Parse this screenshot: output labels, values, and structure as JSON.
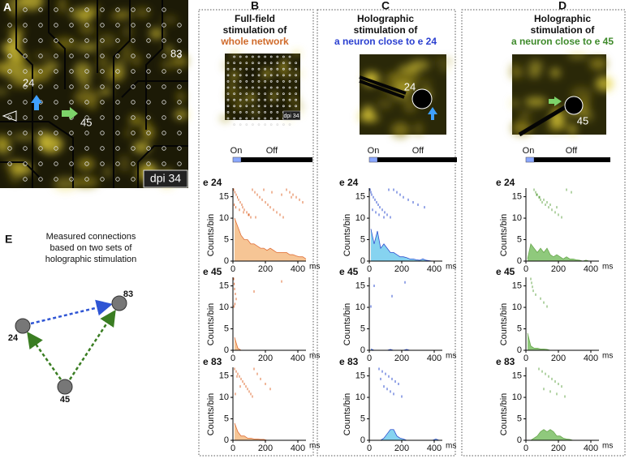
{
  "figure": {
    "A": {
      "letter": "A",
      "labels": [
        "24",
        "83",
        "45"
      ],
      "scale": "dpi 34"
    },
    "B": {
      "letter": "B",
      "title": [
        "Full-field",
        "stimulation of"
      ],
      "target": "whole network",
      "thumb_scale": "dpi 34",
      "on": "On",
      "off": "Off"
    },
    "C": {
      "letter": "C",
      "title": [
        "Holographic",
        "stimulation of"
      ],
      "target": "a neuron close to e 24",
      "image_label": "24",
      "on": "On",
      "off": "Off"
    },
    "D": {
      "letter": "D",
      "title": [
        "Holographic",
        "stimulation of"
      ],
      "target": "a neuron close to e 45",
      "image_label": "45",
      "on": "On",
      "off": "Off"
    },
    "E": {
      "letter": "E",
      "caption": [
        "Measured connections",
        "based on two sets of",
        "holographic stimulation"
      ],
      "nodes": [
        "24",
        "83",
        "45"
      ]
    }
  },
  "chart_data": [
    {
      "type": "area",
      "title": "e 24",
      "ylabel": "Counts/bin",
      "xunit": "ms",
      "color": "#e0703a",
      "fill": "#f6c595",
      "x": [
        10,
        30,
        50,
        70,
        90,
        110,
        130,
        150,
        170,
        190,
        210,
        230,
        250,
        270,
        290,
        310,
        330,
        350,
        370,
        390,
        410,
        430,
        450
      ],
      "values": [
        10,
        8,
        6,
        5,
        5,
        4,
        4,
        3.5,
        3,
        3,
        2.5,
        3,
        2.5,
        2,
        2,
        2,
        2,
        1.5,
        1.5,
        1.2,
        1,
        1,
        0.5
      ],
      "raster_x": [
        5,
        12,
        20,
        28,
        35,
        45,
        55,
        60,
        70,
        85,
        95,
        110,
        120,
        135,
        150,
        165,
        180,
        200,
        215,
        230,
        250,
        270,
        290,
        310,
        330,
        350,
        370,
        390,
        410,
        430,
        8,
        18,
        40,
        65,
        100,
        140,
        190,
        240,
        300,
        360
      ],
      "raster_trial": [
        1,
        2,
        3,
        4,
        5,
        6,
        7,
        8,
        9,
        10,
        11,
        12,
        1,
        2,
        3,
        4,
        5,
        6,
        7,
        8,
        9,
        10,
        11,
        12,
        1,
        2,
        3,
        4,
        5,
        6,
        7,
        8,
        9,
        10,
        11,
        12,
        1,
        2,
        3,
        4
      ],
      "xlim": [
        0,
        450
      ],
      "ylim": [
        0,
        17
      ],
      "xticks": [
        0,
        200,
        400
      ],
      "yticks": [
        0,
        5,
        10,
        15
      ]
    },
    {
      "type": "area",
      "title": "e 45",
      "ylabel": "Counts/bin",
      "xunit": "ms",
      "color": "#e0703a",
      "fill": "#f6c595",
      "x": [
        10,
        30,
        50,
        70,
        90,
        110,
        130,
        150,
        170,
        190,
        210,
        230,
        250,
        270,
        290,
        310,
        330,
        350,
        370,
        390,
        410,
        430,
        450
      ],
      "values": [
        3,
        0.5,
        0,
        0,
        0,
        0,
        0,
        0,
        0,
        0,
        0,
        0,
        0,
        0,
        0,
        0,
        0,
        0,
        0,
        0,
        0,
        0,
        0
      ],
      "raster_x": [
        5,
        8,
        10,
        15,
        20,
        12,
        6,
        300,
        130
      ],
      "raster_trial": [
        1,
        3,
        5,
        7,
        9,
        11,
        12,
        2,
        6
      ],
      "xlim": [
        0,
        450
      ],
      "ylim": [
        0,
        17
      ],
      "xticks": [
        0,
        200,
        400
      ],
      "yticks": [
        0,
        5,
        10,
        15
      ]
    },
    {
      "type": "area",
      "title": "e 83",
      "ylabel": "Counts/bin",
      "xunit": "ms",
      "color": "#e0703a",
      "fill": "#f6c595",
      "x": [
        10,
        30,
        50,
        70,
        90,
        110,
        130,
        150,
        170,
        190,
        210,
        230,
        250,
        270,
        290,
        310,
        330,
        350,
        370,
        390,
        410,
        430,
        450
      ],
      "values": [
        4,
        2,
        1,
        1,
        0.5,
        0.5,
        0.3,
        0.3,
        0.2,
        0.2,
        0,
        0,
        0,
        0,
        0,
        0,
        0,
        0,
        0,
        0,
        0,
        0,
        0
      ],
      "raster_x": [
        10,
        20,
        30,
        40,
        50,
        60,
        70,
        80,
        90,
        100,
        110,
        120,
        130,
        150,
        170,
        200,
        230,
        15,
        25,
        45
      ],
      "raster_trial": [
        1,
        2,
        3,
        4,
        5,
        6,
        7,
        8,
        9,
        10,
        11,
        12,
        1,
        3,
        5,
        7,
        9,
        11,
        4,
        8
      ],
      "xlim": [
        0,
        450
      ],
      "ylim": [
        0,
        17
      ],
      "xticks": [
        0,
        200,
        400
      ],
      "yticks": [
        0,
        5,
        10,
        15
      ]
    },
    {
      "type": "area",
      "title": "e 24",
      "ylabel": "Counts/bin",
      "xunit": "ms",
      "color": "#3050d0",
      "fill": "#86d3f0",
      "x": [
        10,
        30,
        50,
        70,
        90,
        110,
        130,
        150,
        170,
        190,
        210,
        230,
        250,
        270,
        290,
        310,
        330,
        350,
        370,
        390,
        410,
        430,
        450
      ],
      "values": [
        7.5,
        4,
        7,
        3,
        4,
        3,
        2,
        2,
        1.5,
        1,
        1,
        0.8,
        0.5,
        0.5,
        0.3,
        0.2,
        0.5,
        0.2,
        0.1,
        0,
        0,
        0,
        0
      ],
      "raster_x": [
        5,
        10,
        15,
        25,
        35,
        45,
        55,
        65,
        80,
        95,
        110,
        130,
        150,
        170,
        190,
        210,
        240,
        270,
        300,
        340,
        20,
        40,
        60,
        90,
        120
      ],
      "raster_trial": [
        1,
        2,
        3,
        4,
        5,
        6,
        7,
        8,
        9,
        10,
        11,
        12,
        1,
        2,
        3,
        4,
        5,
        6,
        7,
        8,
        9,
        10,
        11,
        12,
        1
      ],
      "xlim": [
        0,
        450
      ],
      "ylim": [
        0,
        17
      ],
      "xticks": [
        0,
        200,
        400
      ],
      "yticks": [
        0,
        5,
        10,
        15
      ]
    },
    {
      "type": "area",
      "title": "e 45",
      "ylabel": "Counts/bin",
      "xunit": "ms",
      "color": "#3050d0",
      "fill": "#86d3f0",
      "x": [
        10,
        30,
        50,
        70,
        90,
        110,
        130,
        150,
        170,
        190,
        210,
        230,
        250,
        270,
        290,
        310,
        330,
        350,
        370,
        390,
        410,
        430,
        450
      ],
      "values": [
        0.3,
        0,
        0,
        0,
        0,
        0,
        0.2,
        0,
        0,
        0,
        0,
        0.2,
        0,
        0,
        0,
        0,
        0,
        0,
        0,
        0,
        0,
        0,
        0
      ],
      "raster_x": [
        30,
        140,
        220,
        10
      ],
      "raster_trial": [
        3,
        6,
        2,
        9
      ],
      "xlim": [
        0,
        450
      ],
      "ylim": [
        0,
        17
      ],
      "xticks": [
        0,
        200,
        400
      ],
      "yticks": [
        0,
        5,
        10,
        15
      ]
    },
    {
      "type": "area",
      "title": "e 83",
      "ylabel": "Counts/bin",
      "xunit": "ms",
      "color": "#3050d0",
      "fill": "#86d3f0",
      "x": [
        10,
        30,
        50,
        70,
        90,
        110,
        130,
        150,
        170,
        190,
        210,
        230,
        250,
        270,
        290,
        310,
        330,
        350,
        370,
        390,
        410,
        430,
        450
      ],
      "values": [
        0,
        0,
        0,
        0,
        0.5,
        1.5,
        2.5,
        2.5,
        1,
        0.5,
        0.3,
        0,
        0,
        0,
        0,
        0,
        0,
        0,
        0,
        0,
        0.3,
        0,
        0
      ],
      "raster_x": [
        60,
        80,
        100,
        120,
        140,
        160,
        180,
        90,
        110,
        130,
        150,
        200,
        70
      ],
      "raster_trial": [
        1,
        2,
        3,
        4,
        5,
        6,
        7,
        8,
        9,
        10,
        11,
        12,
        5
      ],
      "xlim": [
        0,
        450
      ],
      "ylim": [
        0,
        17
      ],
      "xticks": [
        0,
        200,
        400
      ],
      "yticks": [
        0,
        5,
        10,
        15
      ]
    },
    {
      "type": "area",
      "title": "e 24",
      "ylabel": "Counts/bin",
      "xunit": "ms",
      "color": "#6aa84f",
      "fill": "#8fc97c",
      "x": [
        10,
        30,
        50,
        70,
        90,
        110,
        130,
        150,
        170,
        190,
        210,
        230,
        250,
        270,
        290,
        310,
        330,
        350,
        370,
        390,
        410,
        430,
        450
      ],
      "values": [
        0.5,
        4,
        3,
        2,
        3,
        2,
        3,
        1.5,
        1,
        1.5,
        1,
        0.5,
        1,
        0.5,
        0.5,
        0.3,
        0.2,
        0,
        0.2,
        0,
        0,
        0,
        0
      ],
      "raster_x": [
        50,
        60,
        70,
        80,
        90,
        100,
        120,
        140,
        160,
        180,
        200,
        220,
        250,
        280,
        65,
        85,
        110,
        130,
        150,
        190
      ],
      "raster_trial": [
        1,
        2,
        3,
        4,
        5,
        6,
        7,
        8,
        9,
        10,
        11,
        12,
        1,
        2,
        3,
        4,
        5,
        6,
        7,
        8
      ],
      "xlim": [
        0,
        450
      ],
      "ylim": [
        0,
        17
      ],
      "xticks": [
        0,
        200,
        400
      ],
      "yticks": [
        0,
        5,
        10,
        15
      ]
    },
    {
      "type": "area",
      "title": "e 45",
      "ylabel": "Counts/bin",
      "xunit": "ms",
      "color": "#6aa84f",
      "fill": "#8fc97c",
      "x": [
        10,
        30,
        50,
        70,
        90,
        110,
        130,
        150,
        170,
        190,
        210,
        230,
        250,
        270,
        290,
        310,
        330,
        350,
        370,
        390,
        410,
        430,
        450
      ],
      "values": [
        4,
        1,
        0.5,
        0.5,
        0.3,
        0.3,
        0.2,
        0,
        0,
        0,
        0,
        0,
        0,
        0,
        0,
        0,
        0,
        0,
        0,
        0,
        0,
        0,
        0
      ],
      "raster_x": [
        30,
        35,
        40,
        45,
        60,
        90,
        110,
        130
      ],
      "raster_trial": [
        1,
        2,
        3,
        4,
        5,
        6,
        7,
        8
      ],
      "xlim": [
        0,
        450
      ],
      "ylim": [
        0,
        17
      ],
      "xticks": [
        0,
        200,
        400
      ],
      "yticks": [
        0,
        5,
        10,
        15
      ]
    },
    {
      "type": "area",
      "title": "e 83",
      "ylabel": "Counts/bin",
      "xunit": "ms",
      "color": "#6aa84f",
      "fill": "#8fc97c",
      "x": [
        10,
        30,
        50,
        70,
        90,
        110,
        130,
        150,
        170,
        190,
        210,
        230,
        250,
        270,
        290,
        310,
        330,
        350,
        370,
        390,
        410,
        430,
        450
      ],
      "values": [
        0,
        0,
        0.5,
        1,
        2,
        2.5,
        2,
        2.5,
        2,
        1,
        1,
        0.5,
        0.3,
        0.2,
        0,
        0,
        0,
        0,
        0,
        0,
        0,
        0,
        0
      ],
      "raster_x": [
        80,
        100,
        120,
        140,
        160,
        180,
        200,
        220,
        110,
        150,
        190,
        240
      ],
      "raster_trial": [
        1,
        2,
        3,
        4,
        5,
        6,
        7,
        8,
        9,
        10,
        11,
        12
      ],
      "xlim": [
        0,
        450
      ],
      "ylim": [
        0,
        17
      ],
      "xticks": [
        0,
        200,
        400
      ],
      "yticks": [
        0,
        5,
        10,
        15
      ]
    }
  ]
}
